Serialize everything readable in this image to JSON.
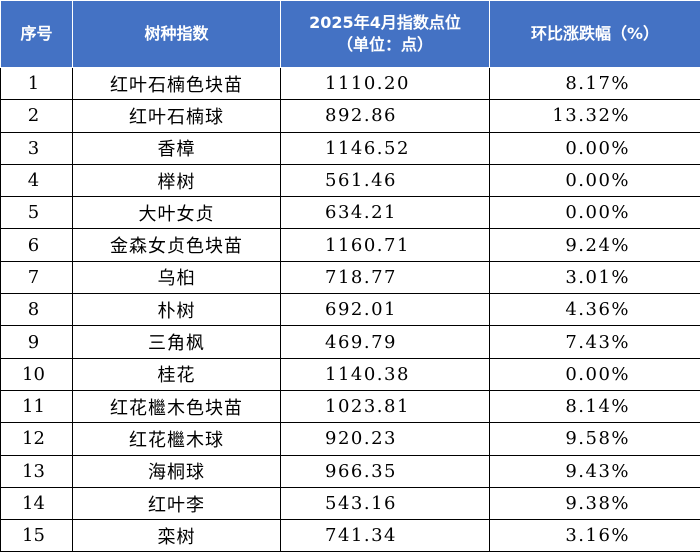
{
  "header": {
    "no": "序号",
    "name": "树种指数",
    "index_line1": "2025年4月指数点位",
    "index_line2": "（单位：点）",
    "change": "环比涨跌幅（%）"
  },
  "rows": [
    {
      "no": "1",
      "name": "红叶石楠色块苗",
      "index": "1110.20",
      "change": "8.17%"
    },
    {
      "no": "2",
      "name": "红叶石楠球",
      "index": "892.86",
      "change": "13.32%"
    },
    {
      "no": "3",
      "name": "香樟",
      "index": "1146.52",
      "change": "0.00%"
    },
    {
      "no": "4",
      "name": "榉树",
      "index": "561.46",
      "change": "0.00%"
    },
    {
      "no": "5",
      "name": "大叶女贞",
      "index": "634.21",
      "change": "0.00%"
    },
    {
      "no": "6",
      "name": "金森女贞色块苗",
      "index": "1160.71",
      "change": "9.24%"
    },
    {
      "no": "7",
      "name": "乌桕",
      "index": "718.77",
      "change": "3.01%"
    },
    {
      "no": "8",
      "name": "朴树",
      "index": "692.01",
      "change": "4.36%"
    },
    {
      "no": "9",
      "name": "三角枫",
      "index": "469.79",
      "change": "7.43%"
    },
    {
      "no": "10",
      "name": "桂花",
      "index": "1140.38",
      "change": "0.00%"
    },
    {
      "no": "11",
      "name": "红花檵木色块苗",
      "index": "1023.81",
      "change": "8.14%"
    },
    {
      "no": "12",
      "name": "红花檵木球",
      "index": "920.23",
      "change": "9.58%"
    },
    {
      "no": "13",
      "name": "海桐球",
      "index": "966.35",
      "change": "9.43%"
    },
    {
      "no": "14",
      "name": "红叶李",
      "index": "543.16",
      "change": "9.38%"
    },
    {
      "no": "15",
      "name": "栾树",
      "index": "741.34",
      "change": "3.16%"
    }
  ]
}
